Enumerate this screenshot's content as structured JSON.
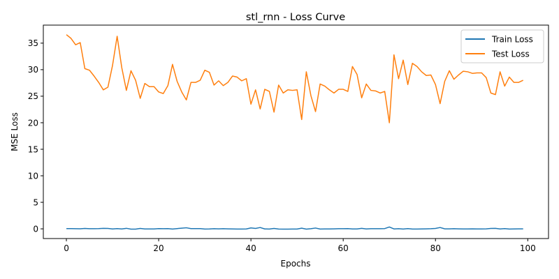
{
  "chart_data": {
    "type": "line",
    "title": "stl_rnn - Loss Curve",
    "xlabel": "Epochs",
    "ylabel": "MSE Loss",
    "xlim": [
      -5,
      104.5
    ],
    "ylim": [
      -1.83,
      38.4
    ],
    "x_ticks": [
      0,
      20,
      40,
      60,
      80,
      100
    ],
    "y_ticks": [
      0,
      5,
      10,
      15,
      20,
      25,
      30,
      35
    ],
    "grid": false,
    "legend_position": "top-right",
    "x": [
      0,
      1,
      2,
      3,
      4,
      5,
      6,
      7,
      8,
      9,
      10,
      11,
      12,
      13,
      14,
      15,
      16,
      17,
      18,
      19,
      20,
      21,
      22,
      23,
      24,
      25,
      26,
      27,
      28,
      29,
      30,
      31,
      32,
      33,
      34,
      35,
      36,
      37,
      38,
      39,
      40,
      41,
      42,
      43,
      44,
      45,
      46,
      47,
      48,
      49,
      50,
      51,
      52,
      53,
      54,
      55,
      56,
      57,
      58,
      59,
      60,
      61,
      62,
      63,
      64,
      65,
      66,
      67,
      68,
      69,
      70,
      71,
      72,
      73,
      74,
      75,
      76,
      77,
      78,
      79,
      80,
      81,
      82,
      83,
      84,
      85,
      86,
      87,
      88,
      89,
      90,
      91,
      92,
      93,
      94,
      95,
      96,
      97,
      98,
      99
    ],
    "series": [
      {
        "name": "Train Loss",
        "color": "#1f77b4",
        "values": [
          0.05,
          0.04,
          0.03,
          0.01,
          0.08,
          0.03,
          0.02,
          0.05,
          0.1,
          0.08,
          -0.02,
          0.05,
          -0.02,
          0.1,
          -0.06,
          -0.06,
          0.08,
          -0.02,
          -0.02,
          -0.02,
          0.05,
          0.03,
          0.05,
          -0.04,
          0.05,
          0.12,
          0.2,
          0.05,
          0.04,
          0.05,
          -0.04,
          -0.02,
          0.03,
          0.0,
          0.02,
          0.0,
          -0.02,
          -0.04,
          -0.04,
          -0.02,
          0.18,
          0.08,
          0.25,
          -0.02,
          -0.04,
          0.08,
          -0.04,
          -0.05,
          -0.06,
          -0.04,
          -0.04,
          0.12,
          -0.06,
          0.03,
          0.15,
          -0.04,
          -0.02,
          -0.02,
          0.0,
          0.03,
          0.03,
          0.05,
          -0.02,
          -0.02,
          0.1,
          -0.02,
          0.03,
          0.03,
          0.03,
          0.05,
          0.35,
          -0.02,
          0.03,
          -0.04,
          0.05,
          -0.04,
          -0.04,
          -0.02,
          0.0,
          0.03,
          0.08,
          0.25,
          0.0,
          0.0,
          0.03,
          0.0,
          -0.02,
          -0.02,
          0.0,
          -0.02,
          -0.02,
          0.0,
          0.08,
          0.1,
          -0.02,
          0.05,
          -0.04,
          -0.02,
          0.0,
          0.0
        ]
      },
      {
        "name": "Test Loss",
        "color": "#ff7f0e",
        "values": [
          36.6,
          35.9,
          34.7,
          35.1,
          30.2,
          29.9,
          28.8,
          27.6,
          26.2,
          26.7,
          30.8,
          36.3,
          30.4,
          26.1,
          29.8,
          28.0,
          24.6,
          27.4,
          26.8,
          26.8,
          25.8,
          25.5,
          27.0,
          31.0,
          27.8,
          25.8,
          24.3,
          27.6,
          27.6,
          28.0,
          29.9,
          29.5,
          27.1,
          27.9,
          27.0,
          27.6,
          28.8,
          28.6,
          27.9,
          28.3,
          23.5,
          26.2,
          22.6,
          26.3,
          25.9,
          22.0,
          27.1,
          25.6,
          26.2,
          26.1,
          26.2,
          20.6,
          29.6,
          25.1,
          22.1,
          27.3,
          26.9,
          26.2,
          25.6,
          26.3,
          26.3,
          25.9,
          30.6,
          29.1,
          24.7,
          27.3,
          26.1,
          26.0,
          25.6,
          25.9,
          20.0,
          32.8,
          28.3,
          31.8,
          27.2,
          31.2,
          30.6,
          29.6,
          28.9,
          29.0,
          27.2,
          23.6,
          27.8,
          29.8,
          28.2,
          29.0,
          29.7,
          29.6,
          29.3,
          29.4,
          29.4,
          28.5,
          25.6,
          25.3,
          29.6,
          26.9,
          28.6,
          27.6,
          27.6,
          28.0
        ]
      }
    ]
  }
}
